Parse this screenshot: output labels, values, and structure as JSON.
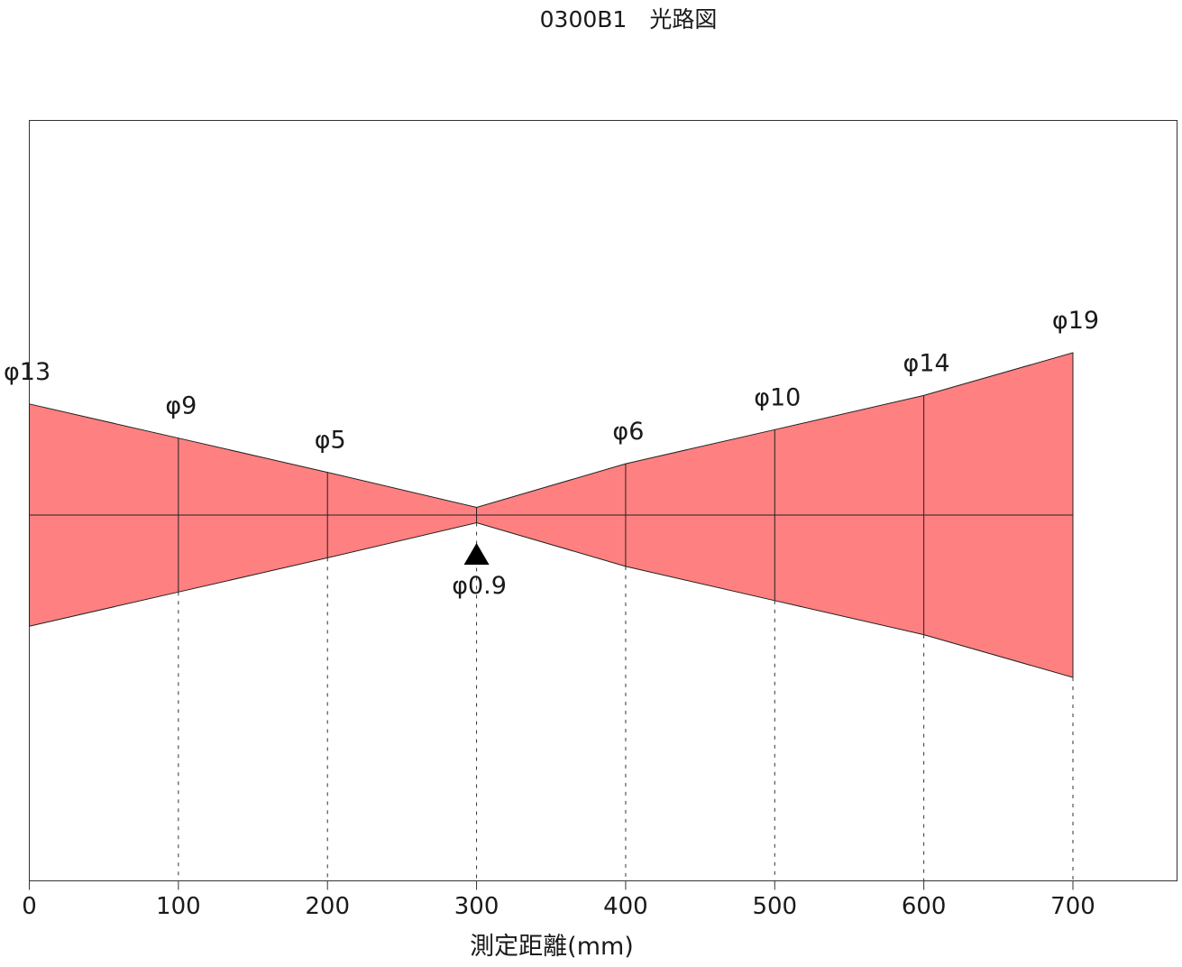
{
  "chart_data": {
    "type": "area",
    "title": "0300B1　光路図",
    "xlabel": "測定距離(mm)",
    "ylabel": "",
    "xlim": [
      0,
      770
    ],
    "x_ticks": [
      0,
      100,
      200,
      300,
      400,
      500,
      600,
      700
    ],
    "x_tick_labels": [
      "0",
      "100",
      "200",
      "300",
      "400",
      "500",
      "600",
      "700"
    ],
    "grid": false,
    "legend": "none",
    "beam_color": "#ff8080",
    "focus_distance": 300,
    "focus_marker": "triangle-up",
    "series": [
      {
        "x": [
          0,
          100,
          200,
          300,
          400,
          500,
          600,
          700
        ],
        "diameter": [
          13,
          9,
          5,
          0.9,
          6,
          10,
          14,
          19
        ]
      }
    ],
    "annotations": [
      "φ13",
      "φ9",
      "φ5",
      "φ0.9",
      "φ6",
      "φ10",
      "φ14",
      "φ19"
    ]
  }
}
